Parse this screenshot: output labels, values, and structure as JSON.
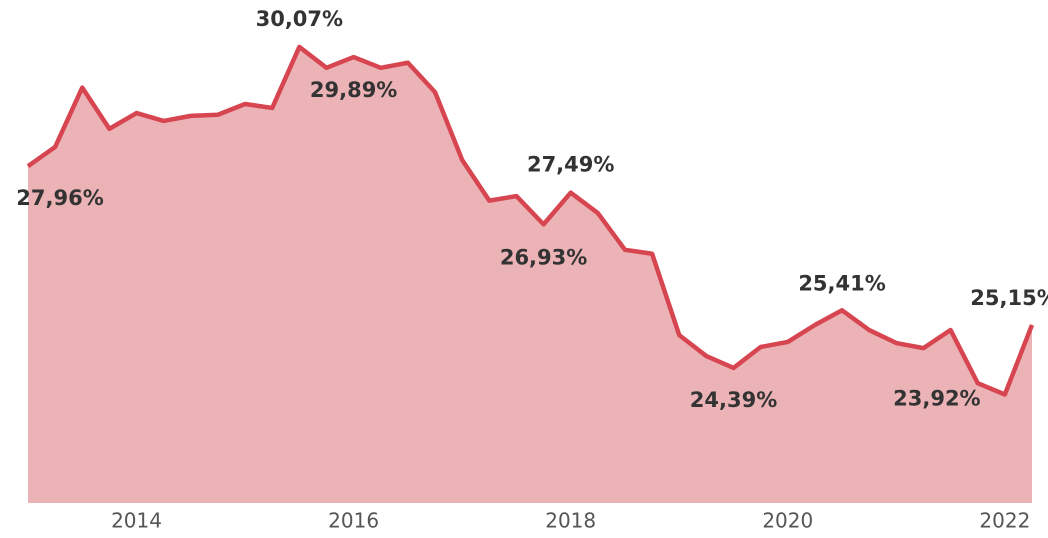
{
  "chart_data": {
    "type": "area",
    "x": [
      2013,
      2013.25,
      2013.5,
      2013.75,
      2014,
      2014.25,
      2014.5,
      2014.75,
      2015,
      2015.25,
      2015.5,
      2015.75,
      2016,
      2016.25,
      2016.5,
      2016.75,
      2017,
      2017.25,
      2017.5,
      2017.75,
      2018,
      2018.25,
      2018.5,
      2018.75,
      2019,
      2019.25,
      2019.5,
      2019.75,
      2020,
      2020.25,
      2020.5,
      2020.75,
      2021,
      2021.25,
      2021.5,
      2021.75,
      2022,
      2022.25
    ],
    "values": [
      27.96,
      28.3,
      29.35,
      28.62,
      28.9,
      28.76,
      28.85,
      28.87,
      29.06,
      28.99,
      30.07,
      29.7,
      29.89,
      29.7,
      29.79,
      29.27,
      28.07,
      27.35,
      27.43,
      26.93,
      27.49,
      27.13,
      26.48,
      26.41,
      24.97,
      24.6,
      24.39,
      24.76,
      24.85,
      25.15,
      25.41,
      25.06,
      24.83,
      24.74,
      25.06,
      24.12,
      23.92,
      25.15
    ],
    "value_labels": [
      "27,96%",
      null,
      null,
      null,
      null,
      null,
      null,
      null,
      null,
      null,
      "30,07%",
      null,
      "29,89%",
      null,
      null,
      null,
      null,
      null,
      null,
      "26,93%",
      "27,49%",
      null,
      null,
      null,
      null,
      null,
      "24,39%",
      null,
      null,
      null,
      "25,41%",
      null,
      null,
      null,
      null,
      null,
      "23,92%",
      "25,15%"
    ],
    "line_color": "#d64550",
    "fill_color": "#ecb3b7",
    "xlim": [
      2013,
      2022.25
    ],
    "xticks": [
      2014,
      2016,
      2018,
      2020,
      2022
    ],
    "ylim": [
      22,
      30.9
    ]
  }
}
